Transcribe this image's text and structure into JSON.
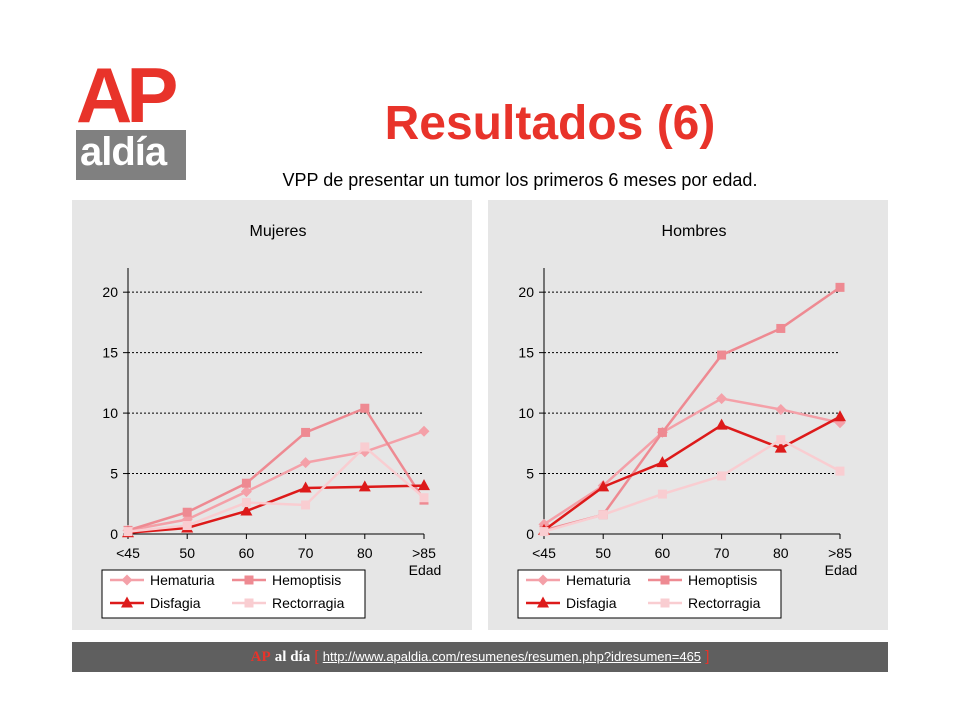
{
  "logo": {
    "brand_ap": "AP",
    "brand_aldia": "aldía"
  },
  "header": {
    "title": "Resultados  (6)",
    "subtitle": "VPP de presentar un tumor los primeros 6 meses por edad."
  },
  "footer": {
    "brand_ap": "AP",
    "brand_aldia": "al día",
    "bracket_open": "[",
    "url": "http://www.apaldia.com/resumenes/resumen.php?idresumen=465",
    "bracket_close": "]"
  },
  "colors": {
    "hematuria": "#f4a0a8",
    "hemoptisis": "#ee8a92",
    "disfagia": "#dd1a1a",
    "rectorragia": "#f9cdd1",
    "grid": "#000000",
    "panel_bg": "#e6e6e6"
  },
  "chart_data": [
    {
      "type": "line",
      "title": "Mujeres",
      "xlabel": "Edad",
      "categories": [
        "<45",
        "50",
        "60",
        "70",
        "80",
        ">85"
      ],
      "ylim": [
        0,
        22
      ],
      "yticks": [
        0,
        5,
        10,
        15,
        20
      ],
      "grid": true,
      "legend_position": "bottom",
      "series": [
        {
          "name": "Hematuria",
          "marker": "diamond",
          "color_key": "hematuria",
          "values": [
            0.3,
            1.2,
            3.5,
            5.9,
            6.8,
            8.5
          ]
        },
        {
          "name": "Hemoptisis",
          "marker": "square",
          "color_key": "hemoptisis",
          "values": [
            0.3,
            1.8,
            4.2,
            8.4,
            10.4,
            2.8
          ]
        },
        {
          "name": "Disfagia",
          "marker": "triangle",
          "color_key": "disfagia",
          "values": [
            0.1,
            0.5,
            1.9,
            3.8,
            3.9,
            4.0
          ]
        },
        {
          "name": "Rectorragia",
          "marker": "square",
          "color_key": "rectorragia",
          "values": [
            0.2,
            0.7,
            2.6,
            2.4,
            7.2,
            3.0
          ]
        }
      ]
    },
    {
      "type": "line",
      "title": "Hombres",
      "xlabel": "Edad",
      "categories": [
        "<45",
        "50",
        "60",
        "70",
        "80",
        ">85"
      ],
      "ylim": [
        0,
        22
      ],
      "yticks": [
        0,
        5,
        10,
        15,
        20
      ],
      "grid": true,
      "legend_position": "bottom",
      "series": [
        {
          "name": "Hematuria",
          "marker": "diamond",
          "color_key": "hematuria",
          "values": [
            0.8,
            4.0,
            8.4,
            11.2,
            10.3,
            9.2
          ]
        },
        {
          "name": "Hemoptisis",
          "marker": "square",
          "color_key": "hemoptisis",
          "values": [
            0.3,
            1.6,
            8.4,
            14.8,
            17.0,
            20.4
          ]
        },
        {
          "name": "Disfagia",
          "marker": "triangle",
          "color_key": "disfagia",
          "values": [
            0.3,
            3.9,
            5.9,
            9.0,
            7.1,
            9.7
          ]
        },
        {
          "name": "Rectorragia",
          "marker": "square",
          "color_key": "rectorragia",
          "values": [
            0.2,
            1.6,
            3.3,
            4.8,
            7.8,
            5.2
          ]
        }
      ]
    }
  ]
}
